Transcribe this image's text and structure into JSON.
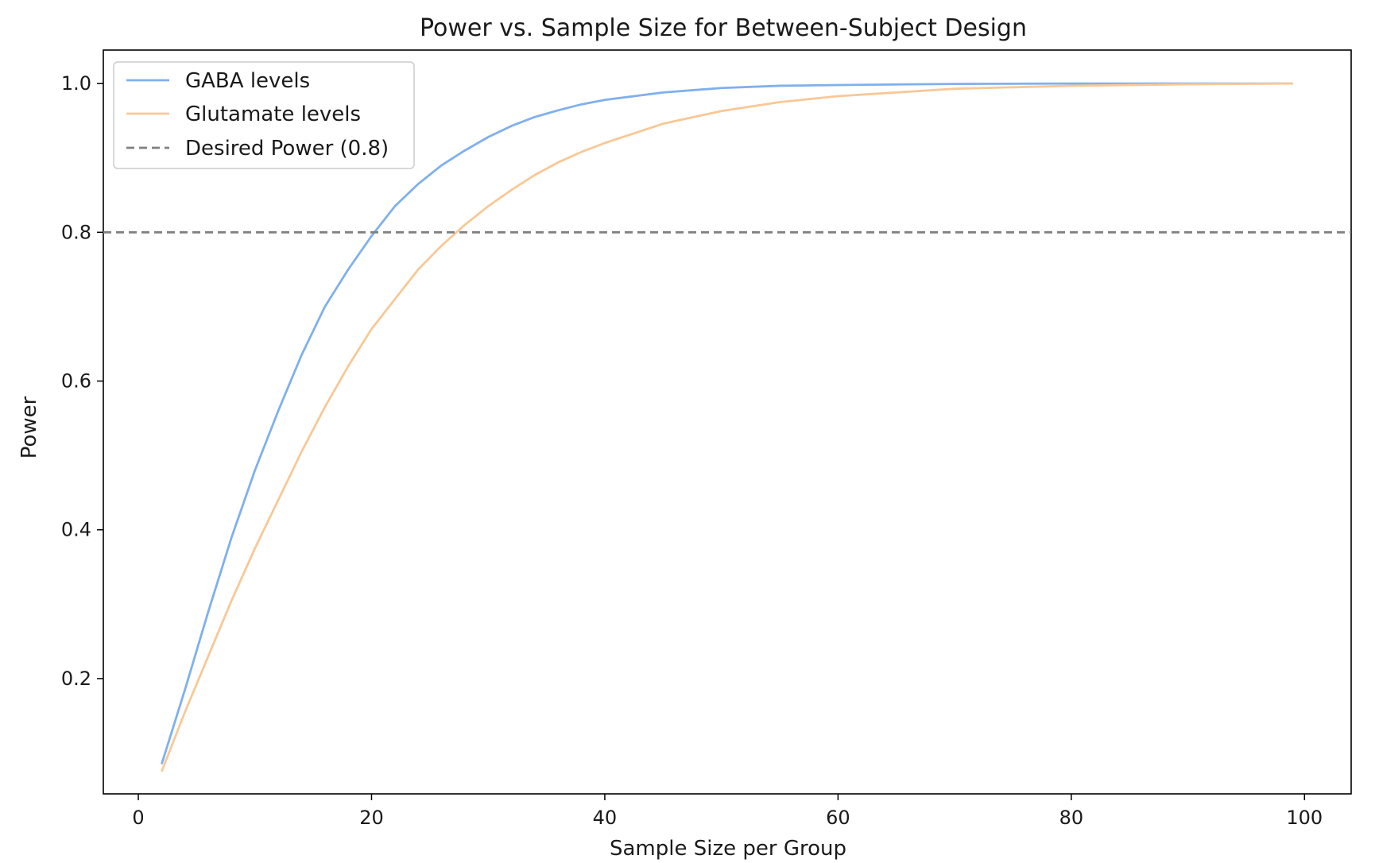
{
  "chart_data": {
    "type": "line",
    "title": "Power vs. Sample Size for Between-Subject Design",
    "xlabel": "Sample Size per Group",
    "ylabel": "Power",
    "xlim": [
      -3,
      104
    ],
    "ylim": [
      0.045,
      1.045
    ],
    "xticks": [
      0,
      20,
      40,
      60,
      80,
      100
    ],
    "yticks": [
      0.2,
      0.4,
      0.6,
      0.8,
      1.0
    ],
    "grid": false,
    "legend_position": "top-left",
    "series": [
      {
        "name": "GABA levels",
        "color": "#7fb0ee",
        "style": "solid",
        "x": [
          2,
          4,
          6,
          8,
          10,
          12,
          14,
          16,
          18,
          20,
          22,
          24,
          26,
          28,
          30,
          32,
          34,
          36,
          38,
          40,
          45,
          50,
          55,
          60,
          70,
          80,
          90,
          99
        ],
        "y": [
          0.085,
          0.185,
          0.29,
          0.39,
          0.48,
          0.56,
          0.635,
          0.7,
          0.75,
          0.795,
          0.835,
          0.865,
          0.89,
          0.91,
          0.928,
          0.943,
          0.955,
          0.964,
          0.972,
          0.978,
          0.988,
          0.994,
          0.997,
          0.998,
          0.9995,
          1.0,
          1.0,
          1.0
        ]
      },
      {
        "name": "Glutamate levels",
        "color": "#f8c896",
        "style": "solid",
        "x": [
          2,
          4,
          6,
          8,
          10,
          12,
          14,
          16,
          18,
          20,
          22,
          24,
          26,
          28,
          30,
          32,
          34,
          36,
          38,
          40,
          45,
          50,
          55,
          60,
          70,
          80,
          90,
          99
        ],
        "y": [
          0.075,
          0.155,
          0.23,
          0.305,
          0.375,
          0.44,
          0.505,
          0.565,
          0.62,
          0.67,
          0.71,
          0.75,
          0.782,
          0.81,
          0.835,
          0.857,
          0.877,
          0.894,
          0.908,
          0.92,
          0.946,
          0.963,
          0.975,
          0.983,
          0.993,
          0.997,
          0.999,
          1.0
        ]
      }
    ],
    "reference_line": {
      "name": "Desired Power (0.8)",
      "y": 0.8,
      "color": "#808080",
      "style": "dashed"
    }
  }
}
